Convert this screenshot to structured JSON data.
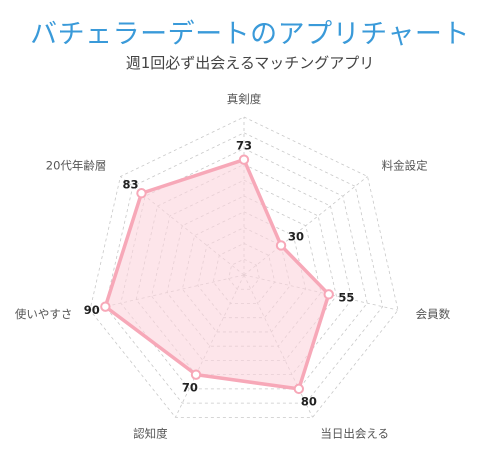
{
  "title": "バチェラーデートのアプリチャート",
  "subtitle": "週1回必ず出会えるマッチングアプリ",
  "colors": {
    "title": "#3a9ad9",
    "series_line": "#f7a8b8",
    "series_fill": "#fbd3dc",
    "grid": "#c8c8c8"
  },
  "chart_data": {
    "type": "radar",
    "title": "バチェラーデートのアプリチャート",
    "categories": [
      "真剣度",
      "料金設定",
      "会員数",
      "当日出会える",
      "認知度",
      "使いやすさ",
      "20代年齢層"
    ],
    "series": [
      {
        "values": [
          73,
          30,
          55,
          80,
          70,
          90,
          83
        ]
      }
    ],
    "range": [
      0,
      100
    ],
    "grid": true,
    "grid_levels": 10
  }
}
